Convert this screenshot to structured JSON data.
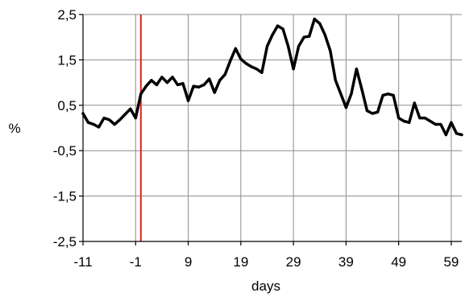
{
  "chart_data": {
    "type": "line",
    "xlabel": "days",
    "ylabel": "%",
    "xlim": [
      -11,
      61
    ],
    "ylim": [
      -2.5,
      2.5
    ],
    "x_ticks": [
      -11,
      -1,
      9,
      19,
      29,
      39,
      49,
      59
    ],
    "x_tick_labels": [
      "-11",
      "-1",
      "9",
      "19",
      "29",
      "39",
      "49",
      "59"
    ],
    "y_ticks": [
      2.5,
      1.5,
      0.5,
      -0.5,
      -1.5,
      -2.5
    ],
    "y_tick_labels": [
      "2,5",
      "1,5",
      "0,5",
      "-0,5",
      "-1,5",
      "-2,5"
    ],
    "grid": true,
    "event_line": {
      "x": 0,
      "color": "#e0201b"
    },
    "series": [
      {
        "color": "#000000",
        "x": [
          -11,
          -10,
          -9,
          -8,
          -7,
          -6,
          -5,
          -4,
          -3,
          -2,
          -1,
          0,
          1,
          2,
          3,
          4,
          5,
          6,
          7,
          8,
          9,
          10,
          11,
          12,
          13,
          14,
          15,
          16,
          17,
          18,
          19,
          20,
          21,
          22,
          23,
          24,
          25,
          26,
          27,
          28,
          29,
          30,
          31,
          32,
          33,
          34,
          35,
          36,
          37,
          38,
          39,
          40,
          41,
          42,
          43,
          44,
          45,
          46,
          47,
          48,
          49,
          50,
          51,
          52,
          53,
          54,
          55,
          56,
          57,
          58,
          59,
          60,
          61
        ],
        "values": [
          0.32,
          0.12,
          0.08,
          0.02,
          0.22,
          0.18,
          0.08,
          0.18,
          0.3,
          0.42,
          0.22,
          0.75,
          0.92,
          1.05,
          0.95,
          1.12,
          1.0,
          1.12,
          0.95,
          0.98,
          0.6,
          0.92,
          0.9,
          0.95,
          1.08,
          0.78,
          1.05,
          1.18,
          1.48,
          1.75,
          1.52,
          1.42,
          1.35,
          1.3,
          1.22,
          1.8,
          2.05,
          2.25,
          2.18,
          1.8,
          1.3,
          1.8,
          2.0,
          2.02,
          2.4,
          2.3,
          2.05,
          1.7,
          1.05,
          0.75,
          0.45,
          0.75,
          1.3,
          0.85,
          0.38,
          0.32,
          0.35,
          0.72,
          0.75,
          0.72,
          0.22,
          0.15,
          0.12,
          0.55,
          0.22,
          0.22,
          0.15,
          0.08,
          0.08,
          -0.15,
          0.12,
          -0.12,
          -0.15
        ]
      }
    ]
  }
}
